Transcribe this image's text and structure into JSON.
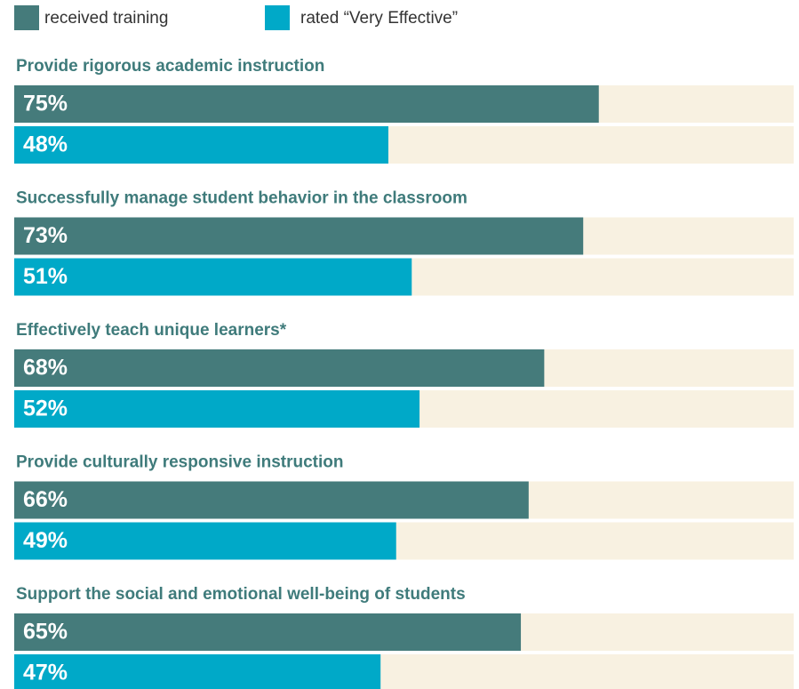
{
  "chart_data": {
    "type": "bar",
    "orientation": "horizontal",
    "categories": [
      "Provide rigorous academic instruction",
      "Successfully manage student behavior in the classroom",
      "Effectively teach unique learners*",
      "Provide culturally responsive instruction",
      "Support the social and emotional well-being of students"
    ],
    "series": [
      {
        "name": "received training",
        "color": "#457b7b",
        "values": [
          75,
          73,
          68,
          66,
          65
        ],
        "value_labels": [
          "75%",
          "73%",
          "68%",
          "66%",
          "65%"
        ]
      },
      {
        "name": "rated “Very Effective”",
        "color": "#00a9c8",
        "values": [
          48,
          51,
          52,
          49,
          47
        ],
        "value_labels": [
          "48%",
          "51%",
          "52%",
          "49%",
          "47%"
        ]
      }
    ],
    "xlim": [
      0,
      100
    ],
    "track_color": "#f8f1e1"
  }
}
